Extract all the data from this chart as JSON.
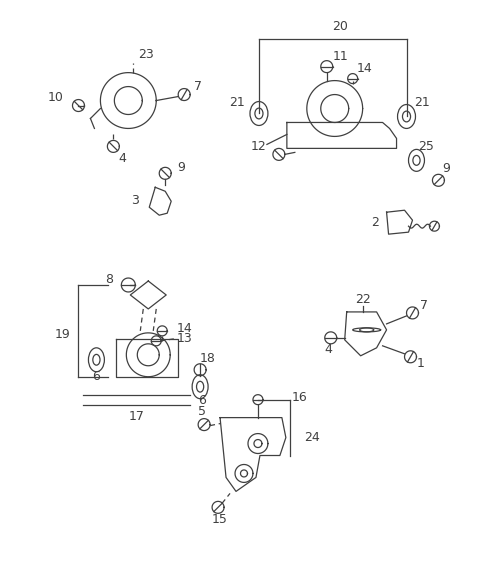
{
  "bg_color": "#ffffff",
  "line_color": "#404040",
  "fig_width": 4.8,
  "fig_height": 5.69,
  "dpi": 100
}
